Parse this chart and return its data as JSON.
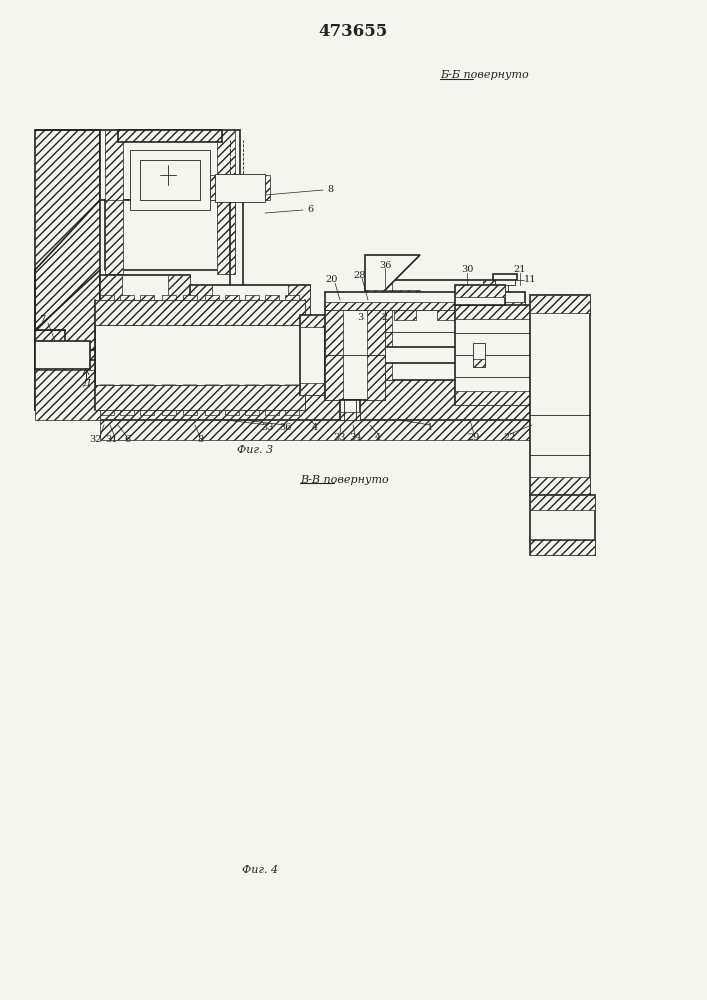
{
  "title": "473655",
  "fig3_label": "Фиг. 3",
  "fig4_label": "Фиг. 4",
  "section_b_label": "Б-Б повернуто",
  "section_v_label": "В-В повернуто",
  "bg_color": "#f5f5f0",
  "line_color": "#222222",
  "hatch_lw": 0.4
}
